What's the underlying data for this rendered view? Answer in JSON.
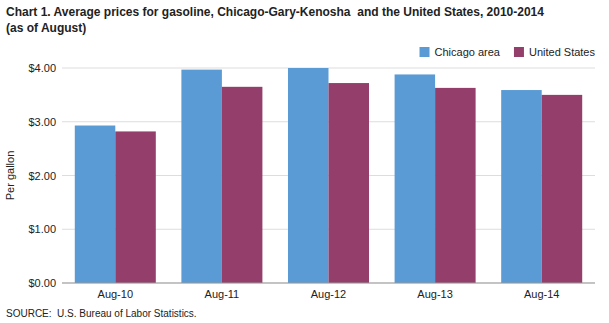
{
  "chart_data": {
    "type": "bar",
    "title": "Chart 1. Average prices for gasoline, Chicago-Gary-Kenosha  and the United States, 2010-2014",
    "subtitle": "(as of August)",
    "ylabel": "Per gallon",
    "annotations": [
      "SOURCE:  U.S. Bureau of Labor Statistics."
    ],
    "categories": [
      "Aug-10",
      "Aug-11",
      "Aug-12",
      "Aug-13",
      "Aug-14"
    ],
    "series": [
      {
        "name": "Chicago area",
        "color": "#5B9BD5",
        "values": [
          2.93,
          3.97,
          4.0,
          3.88,
          3.59
        ]
      },
      {
        "name": "United States",
        "color": "#943F6B",
        "values": [
          2.82,
          3.65,
          3.72,
          3.63,
          3.5
        ]
      }
    ],
    "ylim": [
      0,
      4.0
    ],
    "yticks": [
      {
        "value": 0.0,
        "label": "$0.00"
      },
      {
        "value": 1.0,
        "label": "$1.00"
      },
      {
        "value": 2.0,
        "label": "$2.00"
      },
      {
        "value": 3.0,
        "label": "$3.00"
      },
      {
        "value": 4.0,
        "label": "$4.00"
      }
    ],
    "grid": true,
    "legend": "upper right"
  }
}
